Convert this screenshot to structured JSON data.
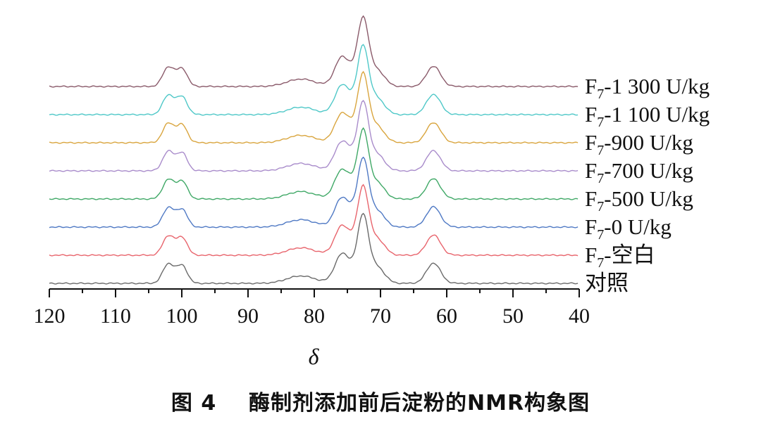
{
  "chart_data": {
    "type": "line",
    "caption": "图 4    酶制剂添加前后淀粉的NMR构象图",
    "xlabel": "δ",
    "ylabel": "",
    "xlim": [
      120,
      40
    ],
    "x_reversed": true,
    "x_ticks": [
      120,
      110,
      100,
      90,
      80,
      70,
      60,
      50,
      40
    ],
    "grid": false,
    "legend": "right, labels placed at the end of each stacked trace",
    "stacked_offset": "traces vertically offset, bottom to top as listed below",
    "peaks_ppm": [
      102,
      100,
      82,
      76,
      72.5,
      62
    ],
    "series": [
      {
        "name": "对照",
        "color": "#6a6a6a",
        "label_parts": [
          "对照"
        ]
      },
      {
        "name": "F7-空白",
        "color": "#e8646c",
        "label_parts": [
          "F",
          "7",
          "-空白"
        ]
      },
      {
        "name": "F7-0 U/kg",
        "color": "#4f79c4",
        "label_parts": [
          "F",
          "7",
          "-0 U/kg"
        ]
      },
      {
        "name": "F7-500 U/kg",
        "color": "#3fa866",
        "label_parts": [
          "F",
          "7",
          "-500 U/kg"
        ]
      },
      {
        "name": "F7-700 U/kg",
        "color": "#a98ccb",
        "label_parts": [
          "F",
          "7",
          "-700 U/kg"
        ]
      },
      {
        "name": "F7-900 U/kg",
        "color": "#d9a53e",
        "label_parts": [
          "F",
          "7",
          "-900 U/kg"
        ]
      },
      {
        "name": "F7-1 100 U/kg",
        "color": "#4fc8c8",
        "label_parts": [
          "F",
          "7",
          "-1 100 U/kg"
        ]
      },
      {
        "name": "F7-1 300 U/kg",
        "color": "#8a5a6a",
        "label_parts": [
          "F",
          "7",
          "-1 300 U/kg"
        ]
      }
    ]
  }
}
